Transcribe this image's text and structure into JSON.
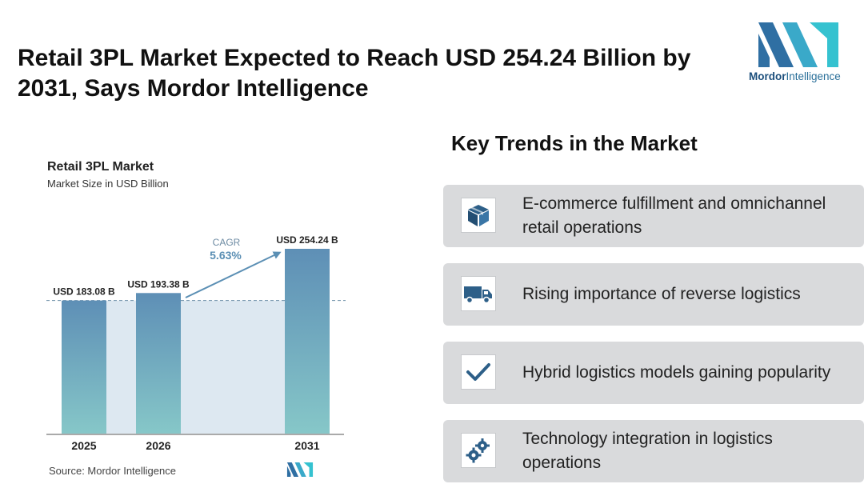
{
  "headline": "Retail 3PL Market Expected to Reach USD 254.24 Billion by 2031, Says Mordor Intelligence",
  "logo": {
    "word1": "Mordor",
    "word2": "Intelligence"
  },
  "chart_data": {
    "type": "bar",
    "title": "Retail 3PL Market",
    "subtitle": "Market Size in USD Billion",
    "categories": [
      "2025",
      "2026",
      "2031"
    ],
    "values": [
      183.08,
      193.38,
      254.24
    ],
    "value_labels": [
      "USD 183.08 B",
      "USD 193.38 B",
      "USD 254.24 B"
    ],
    "unit": "USD Billion",
    "annotation": {
      "label": "CAGR",
      "value": "5.63%"
    },
    "reference_line_value": 183.08,
    "colors": {
      "bar_top": "#5e8fb6",
      "bar_bottom": "#86c7c8",
      "band": "#dde8f1",
      "arrow": "#5b8fb4"
    },
    "grid": false,
    "legend": "none",
    "ylim": [
      0,
      254.24
    ]
  },
  "source": "Source:  Mordor Intelligence",
  "trends": {
    "title": "Key Trends in the Market",
    "items": [
      {
        "icon": "package-box-icon",
        "text": "E-commerce fulfillment and omnichannel retail operations"
      },
      {
        "icon": "delivery-truck-icon",
        "text": "Rising importance of reverse logistics"
      },
      {
        "icon": "checkmark-icon",
        "text": "Hybrid logistics models gaining popularity"
      },
      {
        "icon": "gears-icon",
        "text": "Technology integration in logistics operations"
      }
    ]
  }
}
